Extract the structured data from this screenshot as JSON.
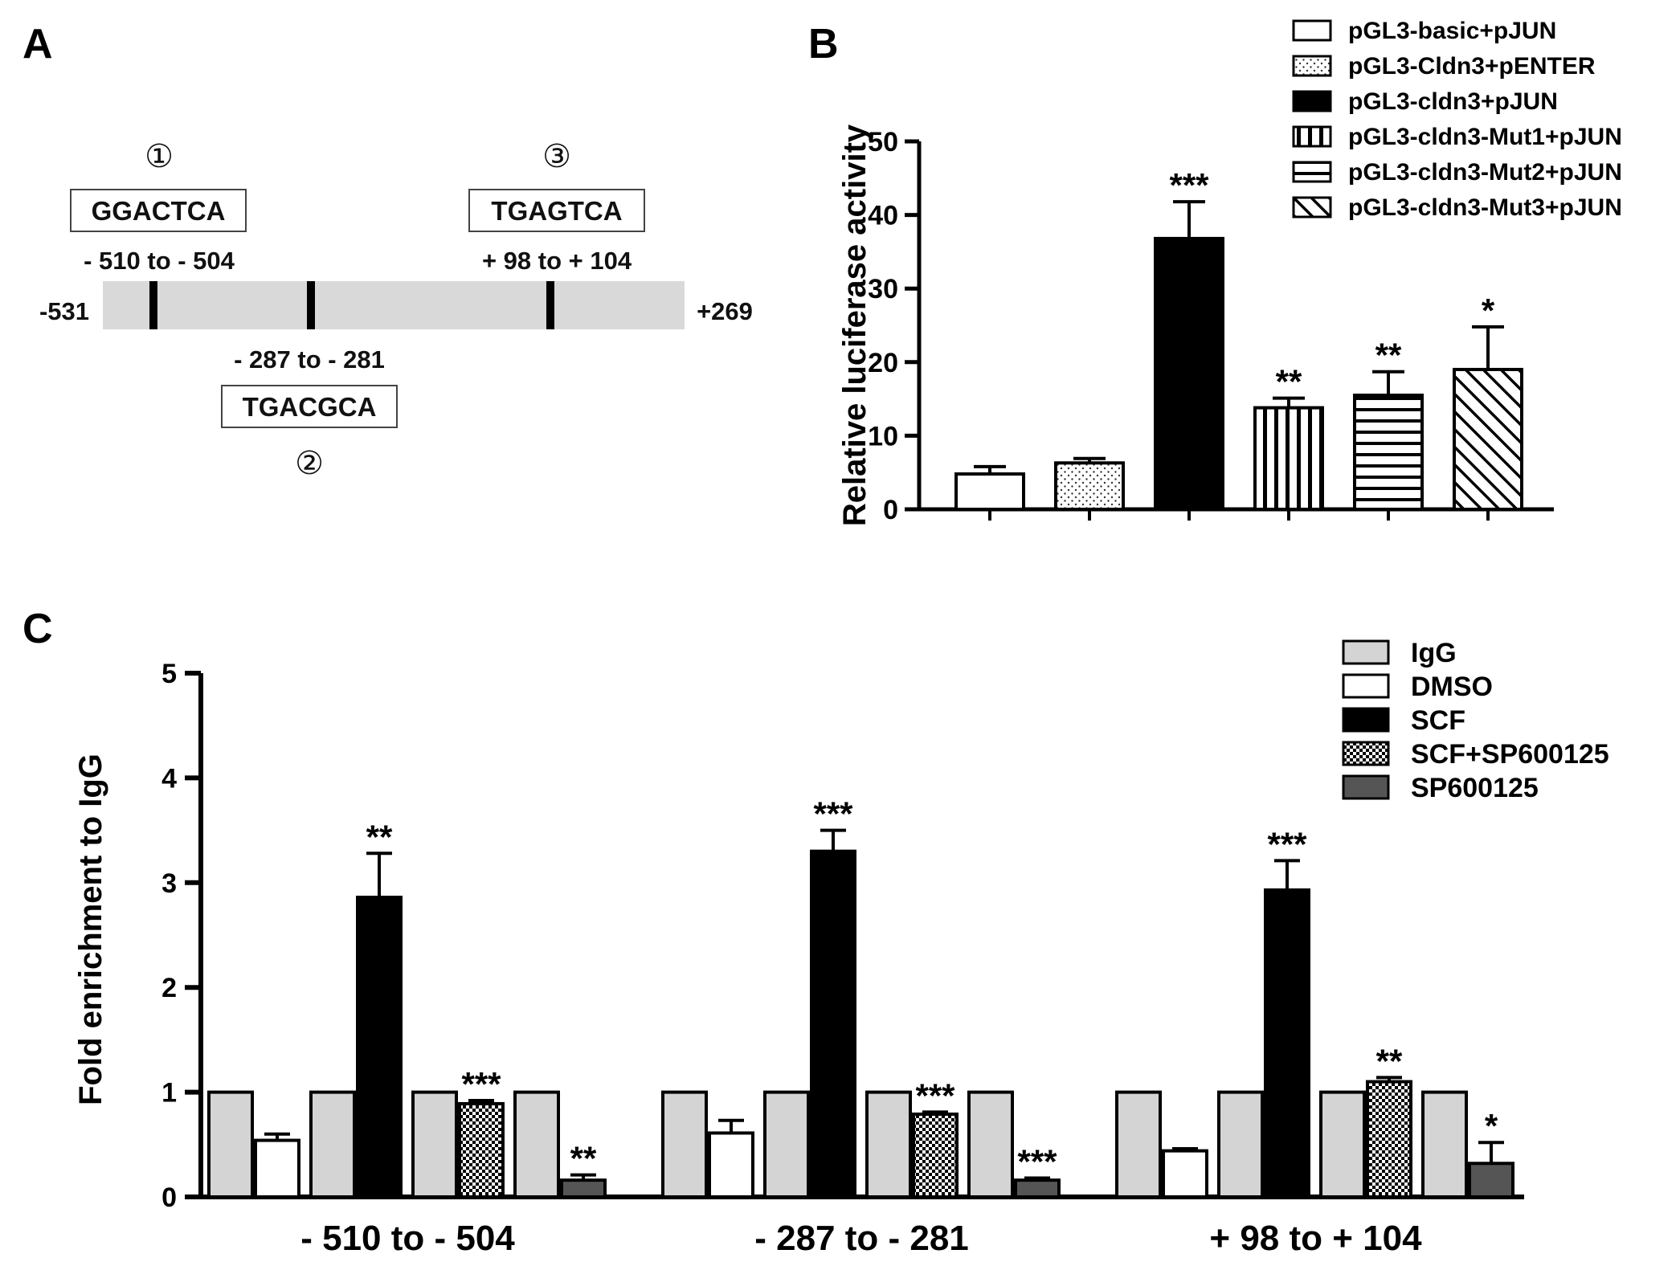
{
  "panelA": {
    "letter": "A",
    "start_label": "-531",
    "end_label": "+269",
    "sites": [
      {
        "marker": "①",
        "seq": "GGACTCA",
        "range": "- 510 to - 504",
        "position": -507
      },
      {
        "marker": "②",
        "seq": "TGACGCA",
        "range": "- 287 to - 281",
        "position": -284
      },
      {
        "marker": "③",
        "seq": "TGAGTCA",
        "range": "+ 98 to + 104",
        "position": 101
      }
    ]
  },
  "chart_data": [
    {
      "id": "B",
      "letter": "B",
      "type": "bar",
      "title": "",
      "ylabel": "Relative luciferase activity",
      "xlabel": "",
      "ylim": [
        0,
        50
      ],
      "yticks": [
        "0",
        "10",
        "20",
        "30",
        "40",
        "50"
      ],
      "series": [
        {
          "name": "pGL3-basic+pJUN",
          "value": 4.8,
          "error": 1.0,
          "sig": "",
          "pattern": "white"
        },
        {
          "name": "pGL3-Cldn3+pENTER",
          "value": 6.3,
          "error": 0.6,
          "sig": "",
          "pattern": "dots"
        },
        {
          "name": "pGL3-cldn3+pJUN",
          "value": 36.8,
          "error": 5.0,
          "sig": "***",
          "pattern": "black"
        },
        {
          "name": "pGL3-cldn3-Mut1+pJUN",
          "value": 13.8,
          "error": 1.3,
          "sig": "**",
          "pattern": "vlines"
        },
        {
          "name": "pGL3-cldn3-Mut2+pJUN",
          "value": 15.5,
          "error": 3.2,
          "sig": "**",
          "pattern": "hlines"
        },
        {
          "name": "pGL3-cldn3-Mut3+pJUN",
          "value": 19.0,
          "error": 5.8,
          "sig": "*",
          "pattern": "diag"
        }
      ]
    },
    {
      "id": "C",
      "letter": "C",
      "type": "bar",
      "title": "",
      "ylabel": "Fold enrichment to IgG",
      "xlabel": "",
      "ylim": [
        0,
        5
      ],
      "yticks": [
        "0",
        "1",
        "2",
        "3",
        "4",
        "5"
      ],
      "categories": [
        "- 510 to - 504",
        "- 287 to - 281",
        "+ 98 to  + 104"
      ],
      "legend": [
        {
          "name": "IgG",
          "pattern": "gray"
        },
        {
          "name": "DMSO",
          "pattern": "white"
        },
        {
          "name": "SCF",
          "pattern": "black"
        },
        {
          "name": "SCF+SP600125",
          "pattern": "checker"
        },
        {
          "name": "SP600125",
          "pattern": "dark"
        }
      ],
      "groups": [
        {
          "category": "- 510 to - 504",
          "pairs": [
            {
              "name": "DMSO",
              "igg": 1,
              "value": 0.54,
              "error": 0.06,
              "sig": "",
              "pattern": "white"
            },
            {
              "name": "SCF",
              "igg": 1,
              "value": 2.86,
              "error": 0.42,
              "sig": "**",
              "pattern": "black"
            },
            {
              "name": "SCF+SP600125",
              "igg": 1,
              "value": 0.89,
              "error": 0.03,
              "sig": "***",
              "pattern": "checker"
            },
            {
              "name": "SP600125",
              "igg": 1,
              "value": 0.16,
              "error": 0.05,
              "sig": "**",
              "pattern": "dark"
            }
          ]
        },
        {
          "category": "- 287 to - 281",
          "pairs": [
            {
              "name": "DMSO",
              "igg": 1,
              "value": 0.61,
              "error": 0.12,
              "sig": "",
              "pattern": "white"
            },
            {
              "name": "SCF",
              "igg": 1,
              "value": 3.3,
              "error": 0.2,
              "sig": "***",
              "pattern": "black"
            },
            {
              "name": "SCF+SP600125",
              "igg": 1,
              "value": 0.79,
              "error": 0.02,
              "sig": "***",
              "pattern": "checker"
            },
            {
              "name": "SP600125",
              "igg": 1,
              "value": 0.16,
              "error": 0.02,
              "sig": "***",
              "pattern": "dark"
            }
          ]
        },
        {
          "category": "+ 98 to  + 104",
          "pairs": [
            {
              "name": "DMSO",
              "igg": 1,
              "value": 0.44,
              "error": 0.02,
              "sig": "",
              "pattern": "white"
            },
            {
              "name": "SCF",
              "igg": 1,
              "value": 2.93,
              "error": 0.28,
              "sig": "***",
              "pattern": "black"
            },
            {
              "name": "SCF+SP600125",
              "igg": 1,
              "value": 1.1,
              "error": 0.04,
              "sig": "**",
              "pattern": "checker"
            },
            {
              "name": "SP600125",
              "igg": 1,
              "value": 0.32,
              "error": 0.2,
              "sig": "*",
              "pattern": "dark"
            }
          ]
        }
      ]
    }
  ]
}
